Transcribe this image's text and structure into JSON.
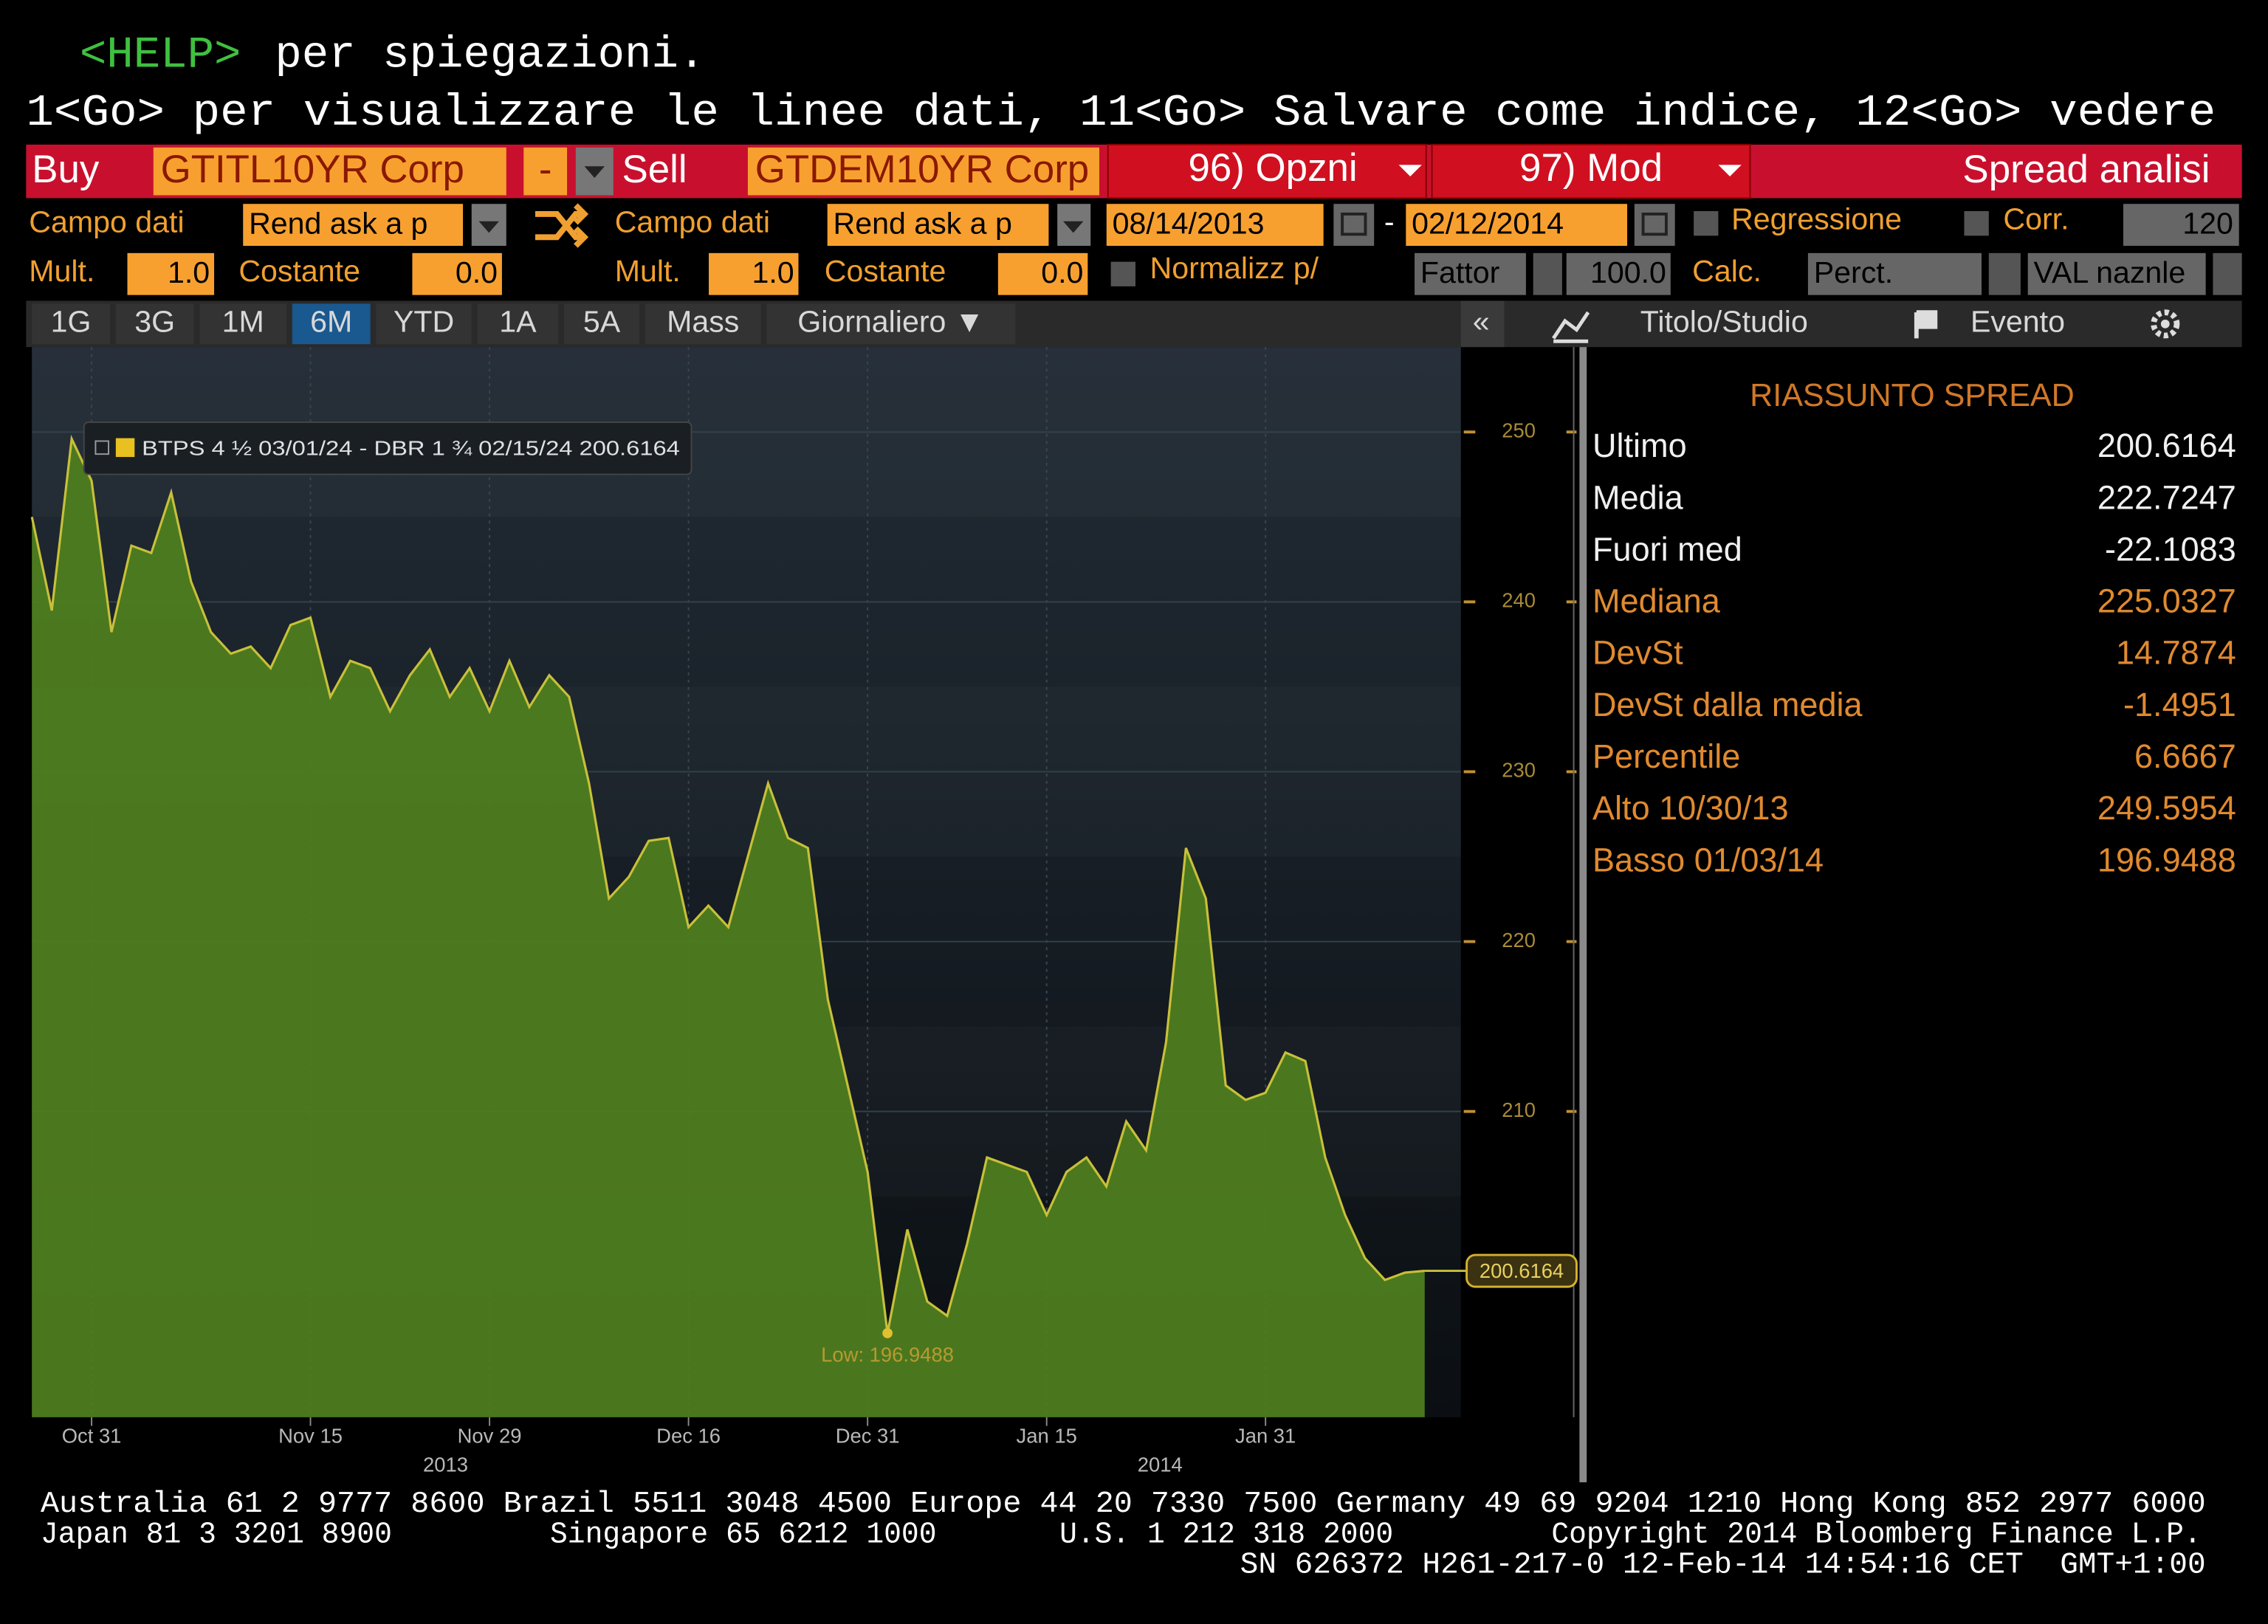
{
  "header": {
    "help_key": "<HELP>",
    "help_text": "per spiegazioni.",
    "instructions": "1<Go> per visualizzare le linee dati, 11<Go> Salvare come indice, 12<Go> vedere"
  },
  "toolbar": {
    "buy": "Buy",
    "security_1": "GTITL10YR Corp",
    "operator": "-",
    "sell": "Sell",
    "security_2": "GTDEM10YR Corp",
    "options": "96) Opzni",
    "mod": "97) Mod",
    "title": "Spread analisi"
  },
  "fields": {
    "field_label_1": "Campo dati",
    "field_1": "Rend ask a p",
    "field_label_2": "Campo dati",
    "field_2": "Rend ask a p",
    "start_date": "08/14/2013",
    "date_separator": "-",
    "end_date": "02/12/2014",
    "regression": "Regressione",
    "corr": "Corr.",
    "corr_window": 120
  },
  "params": {
    "mult_label_1": "Mult.",
    "mult_1": "1.0",
    "const_label_1": "Costante",
    "const_1": "0.0",
    "mult_label_2": "Mult.",
    "mult_2": "1.0",
    "const_label_2": "Costante",
    "const_2": "0.0",
    "normalize": "Normalizz p/",
    "factor_label": "Fattor",
    "factor": "100.0",
    "calc_label": "Calc.",
    "calc": "Perct.",
    "currency": "VAL naznle"
  },
  "tabs": [
    "1G",
    "3G",
    "1M",
    "6M",
    "YTD",
    "1A",
    "5A",
    "Mass",
    "Giornaliero ▼"
  ],
  "side_tabs": [
    "«",
    "Titolo/Studio",
    "Evento"
  ],
  "chart_data": {
    "type": "area",
    "categories": [
      null,
      null,
      null,
      "Oct 31",
      null,
      null,
      null,
      null,
      null,
      null,
      null,
      null,
      null,
      null,
      "Nov 15",
      null,
      null,
      null,
      null,
      null,
      null,
      null,
      null,
      "Nov 29",
      null,
      null,
      null,
      null,
      null,
      null,
      null,
      null,
      null,
      "Dec 16",
      null,
      null,
      null,
      null,
      null,
      null,
      null,
      null,
      "Dec 31",
      null,
      null,
      null,
      null,
      null,
      null,
      null,
      null,
      "Jan 15",
      null,
      null,
      null,
      null,
      null,
      null,
      null,
      null,
      null,
      null,
      "Jan 31",
      null,
      null,
      null,
      null,
      null,
      null,
      null,
      null
    ],
    "x_group_labels": [
      "2013",
      "2014"
    ],
    "series": [
      {
        "name": "BTPS 4 ½ 03/01/24 - DBR 1 ¾ 02/15/24 200.6164",
        "color": "#4e7d1f",
        "line_color": "#c8c03a",
        "values": [
          245.0,
          239.49,
          249.5954,
          247.12,
          238.22,
          243.31,
          242.88,
          246.44,
          241.19,
          238.22,
          236.95,
          237.37,
          236.1,
          238.64,
          239.07,
          234.41,
          236.53,
          236.1,
          233.56,
          235.68,
          237.2,
          234.41,
          236.1,
          233.56,
          236.53,
          233.81,
          235.68,
          234.41,
          229.32,
          222.54,
          223.81,
          225.93,
          226.1,
          220.85,
          222.12,
          220.85,
          225.08,
          229.32,
          226.1,
          225.51,
          216.61,
          211.53,
          206.44,
          196.9488,
          203.05,
          198.81,
          197.97,
          202.2,
          207.29,
          206.86,
          206.44,
          203.9,
          206.44,
          207.29,
          205.59,
          209.41,
          207.71,
          214.07,
          225.51,
          222.54,
          211.53,
          210.68,
          211.1,
          213.47,
          212.97,
          207.29,
          203.9,
          201.36,
          200.08,
          200.51,
          200.6164
        ]
      }
    ],
    "ylim": [
      192,
      255
    ],
    "yticks": [
      210,
      220,
      230,
      240,
      250
    ],
    "annotations": [
      {
        "text": "Low: 196.9488"
      }
    ],
    "last_value_label": "200.6164"
  },
  "summary": {
    "title": "RIASSUNTO SPREAD",
    "rows": [
      {
        "label": "Ultimo",
        "value": 200.6164
      },
      {
        "label": "Media",
        "value": 222.7247
      },
      {
        "label": "Fuori med",
        "value": -22.1083
      },
      {
        "label": "Mediana",
        "value": 225.0327
      },
      {
        "label": "DevSt",
        "value": 14.7874
      },
      {
        "label": "DevSt dalla media",
        "value": -1.4951
      },
      {
        "label": "Percentile",
        "value": 6.6667
      },
      {
        "label": "Alto 10/30/13",
        "value": 249.5954
      },
      {
        "label": "Basso 01/03/14",
        "value": 196.9488
      }
    ]
  },
  "footer": [
    "Australia 61 2 9777 8600 Brazil 5511 3048 4500 Europe 44 20 7330 7500 Germany 49 69 9204 1210 Hong Kong 852 2977 6000",
    "Japan 81 3 3201 8900         Singapore 65 6212 1000       U.S. 1 212 318 2000         Copyright 2014 Bloomberg Finance L.P.",
    "SN 626372 H261-217-0 12-Feb-14 14:54:16 CET  GMT+1:00"
  ]
}
